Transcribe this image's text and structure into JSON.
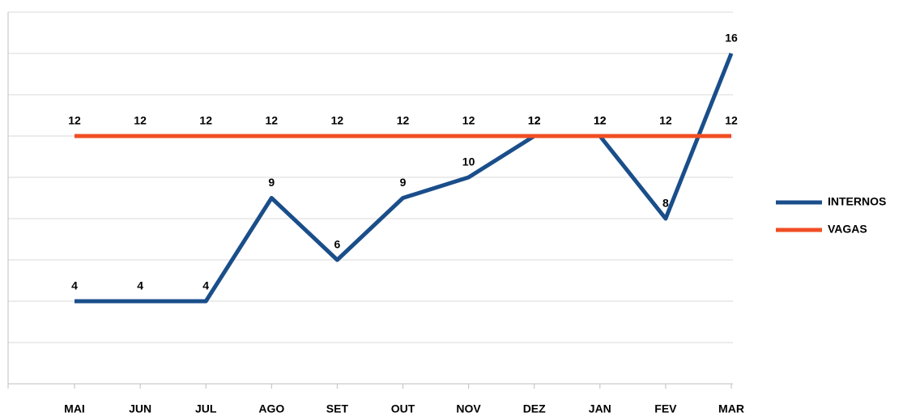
{
  "chart_data": {
    "type": "line",
    "categories": [
      "MAI",
      "JUN",
      "JUL",
      "AGO",
      "SET",
      "OUT",
      "NOV",
      "DEZ",
      "JAN",
      "FEV",
      "MAR"
    ],
    "series": [
      {
        "name": "INTERNOS",
        "color": "#1a4e8a",
        "values": [
          4,
          4,
          4,
          9,
          6,
          9,
          10,
          12,
          12,
          8,
          16
        ]
      },
      {
        "name": "VAGAS",
        "color": "#f04e23",
        "values": [
          12,
          12,
          12,
          12,
          12,
          12,
          12,
          12,
          12,
          12,
          12
        ]
      }
    ],
    "ylim": [
      0,
      18
    ],
    "yticks": [
      0,
      2,
      4,
      6,
      8,
      10,
      12,
      14,
      16,
      18
    ],
    "grid": true,
    "legend": "right"
  }
}
